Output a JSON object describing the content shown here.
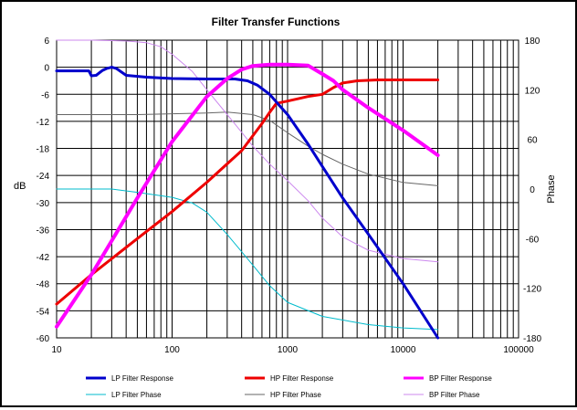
{
  "chart_data": {
    "type": "line",
    "title": "Filter Transfer  Functions",
    "xlabel": "",
    "ylabel": "dB",
    "y2label": "Phase",
    "xscale": "log",
    "xlim": [
      10,
      100000
    ],
    "ylim": [
      -60,
      6
    ],
    "y2lim": [
      -180,
      180
    ],
    "x_tick_labels": [
      "10",
      "100",
      "1000",
      "10000",
      "100000"
    ],
    "x_tick_values": [
      10,
      100,
      1000,
      10000,
      100000
    ],
    "y_tick_labels": [
      "6",
      "0",
      "-6",
      "-12",
      "-18",
      "-24",
      "-30",
      "-36",
      "-42",
      "-48",
      "-54",
      "-60"
    ],
    "y_tick_values": [
      6,
      0,
      -6,
      -12,
      -18,
      -24,
      -30,
      -36,
      -42,
      -48,
      -54,
      -60
    ],
    "y2_tick_labels": [
      "180",
      "120",
      "60",
      "0",
      "-60",
      "-120",
      "-180"
    ],
    "y2_tick_values": [
      180,
      120,
      60,
      0,
      -60,
      -120,
      -180
    ],
    "grid": true,
    "legend_position": "bottom",
    "series": [
      {
        "name": "LP Filter Response",
        "axis": "left",
        "color": "#0000cc",
        "width": 3,
        "x": [
          10,
          15,
          19,
          20,
          22,
          25,
          27,
          30,
          33,
          40,
          60,
          100,
          200,
          350,
          450,
          550,
          700,
          850,
          1000,
          1500,
          2000,
          3000,
          5000,
          10000,
          20000
        ],
        "y": [
          -0.8,
          -0.8,
          -0.8,
          -1.9,
          -1.8,
          -0.7,
          -0.3,
          0,
          -0.3,
          -1.8,
          -2.2,
          -2.5,
          -2.6,
          -2.6,
          -3,
          -4,
          -6,
          -8.5,
          -10.5,
          -17,
          -22,
          -29,
          -37,
          -48,
          -60
        ]
      },
      {
        "name": "HP Filter Response",
        "axis": "left",
        "color": "#ee0000",
        "width": 3,
        "x": [
          10,
          20,
          50,
          100,
          200,
          400,
          600,
          700,
          800,
          1000,
          1500,
          2000,
          2500,
          3000,
          4000,
          6000,
          10000,
          20000
        ],
        "y": [
          -52.5,
          -46,
          -38,
          -32,
          -25.5,
          -18.5,
          -12.5,
          -10,
          -8,
          -7.5,
          -6.5,
          -6,
          -4.5,
          -3.5,
          -3,
          -2.8,
          -2.8,
          -2.8
        ]
      },
      {
        "name": "BP Filter Response",
        "axis": "left",
        "color": "#ff00ff",
        "width": 4,
        "x": [
          10,
          20,
          50,
          100,
          200,
          300,
          400,
          500,
          700,
          1000,
          1500,
          2000,
          2500,
          3000,
          5000,
          10000,
          20000
        ],
        "y": [
          -57.5,
          -46,
          -29,
          -16.5,
          -6.5,
          -2.5,
          -0.5,
          0.3,
          0.6,
          0.6,
          0.4,
          -1.5,
          -3,
          -5,
          -9,
          -14,
          -19.5
        ]
      },
      {
        "name": "LP Filter Phase",
        "axis": "right",
        "color": "#00bbcc",
        "width": 1,
        "x": [
          10,
          20,
          30,
          50,
          100,
          150,
          200,
          300,
          500,
          700,
          1000,
          2000,
          5000,
          10000,
          20000
        ],
        "y": [
          0,
          0,
          0,
          -4,
          -10,
          -17,
          -28,
          -55,
          -92,
          -117,
          -137,
          -154,
          -164,
          -168,
          -170
        ]
      },
      {
        "name": "HP Filter Phase",
        "axis": "right",
        "color": "#666666",
        "width": 1,
        "x": [
          10,
          20,
          50,
          100,
          200,
          300,
          500,
          700,
          1000,
          1500,
          2000,
          3000,
          5000,
          10000,
          20000
        ],
        "y": [
          90,
          90,
          90,
          91,
          92,
          93,
          90,
          83,
          68,
          52,
          42,
          30,
          18,
          8,
          4
        ]
      },
      {
        "name": "BP Filter Phase",
        "axis": "right",
        "color": "#cc88ee",
        "width": 1,
        "x": [
          10,
          20,
          40,
          60,
          80,
          100,
          150,
          200,
          300,
          500,
          700,
          1000,
          1500,
          2000,
          3000,
          5000,
          10000,
          20000
        ],
        "y": [
          180,
          180,
          179,
          177,
          172,
          163,
          142,
          120,
          90,
          52,
          30,
          10,
          -14,
          -35,
          -58,
          -74,
          -84,
          -88
        ]
      }
    ]
  }
}
